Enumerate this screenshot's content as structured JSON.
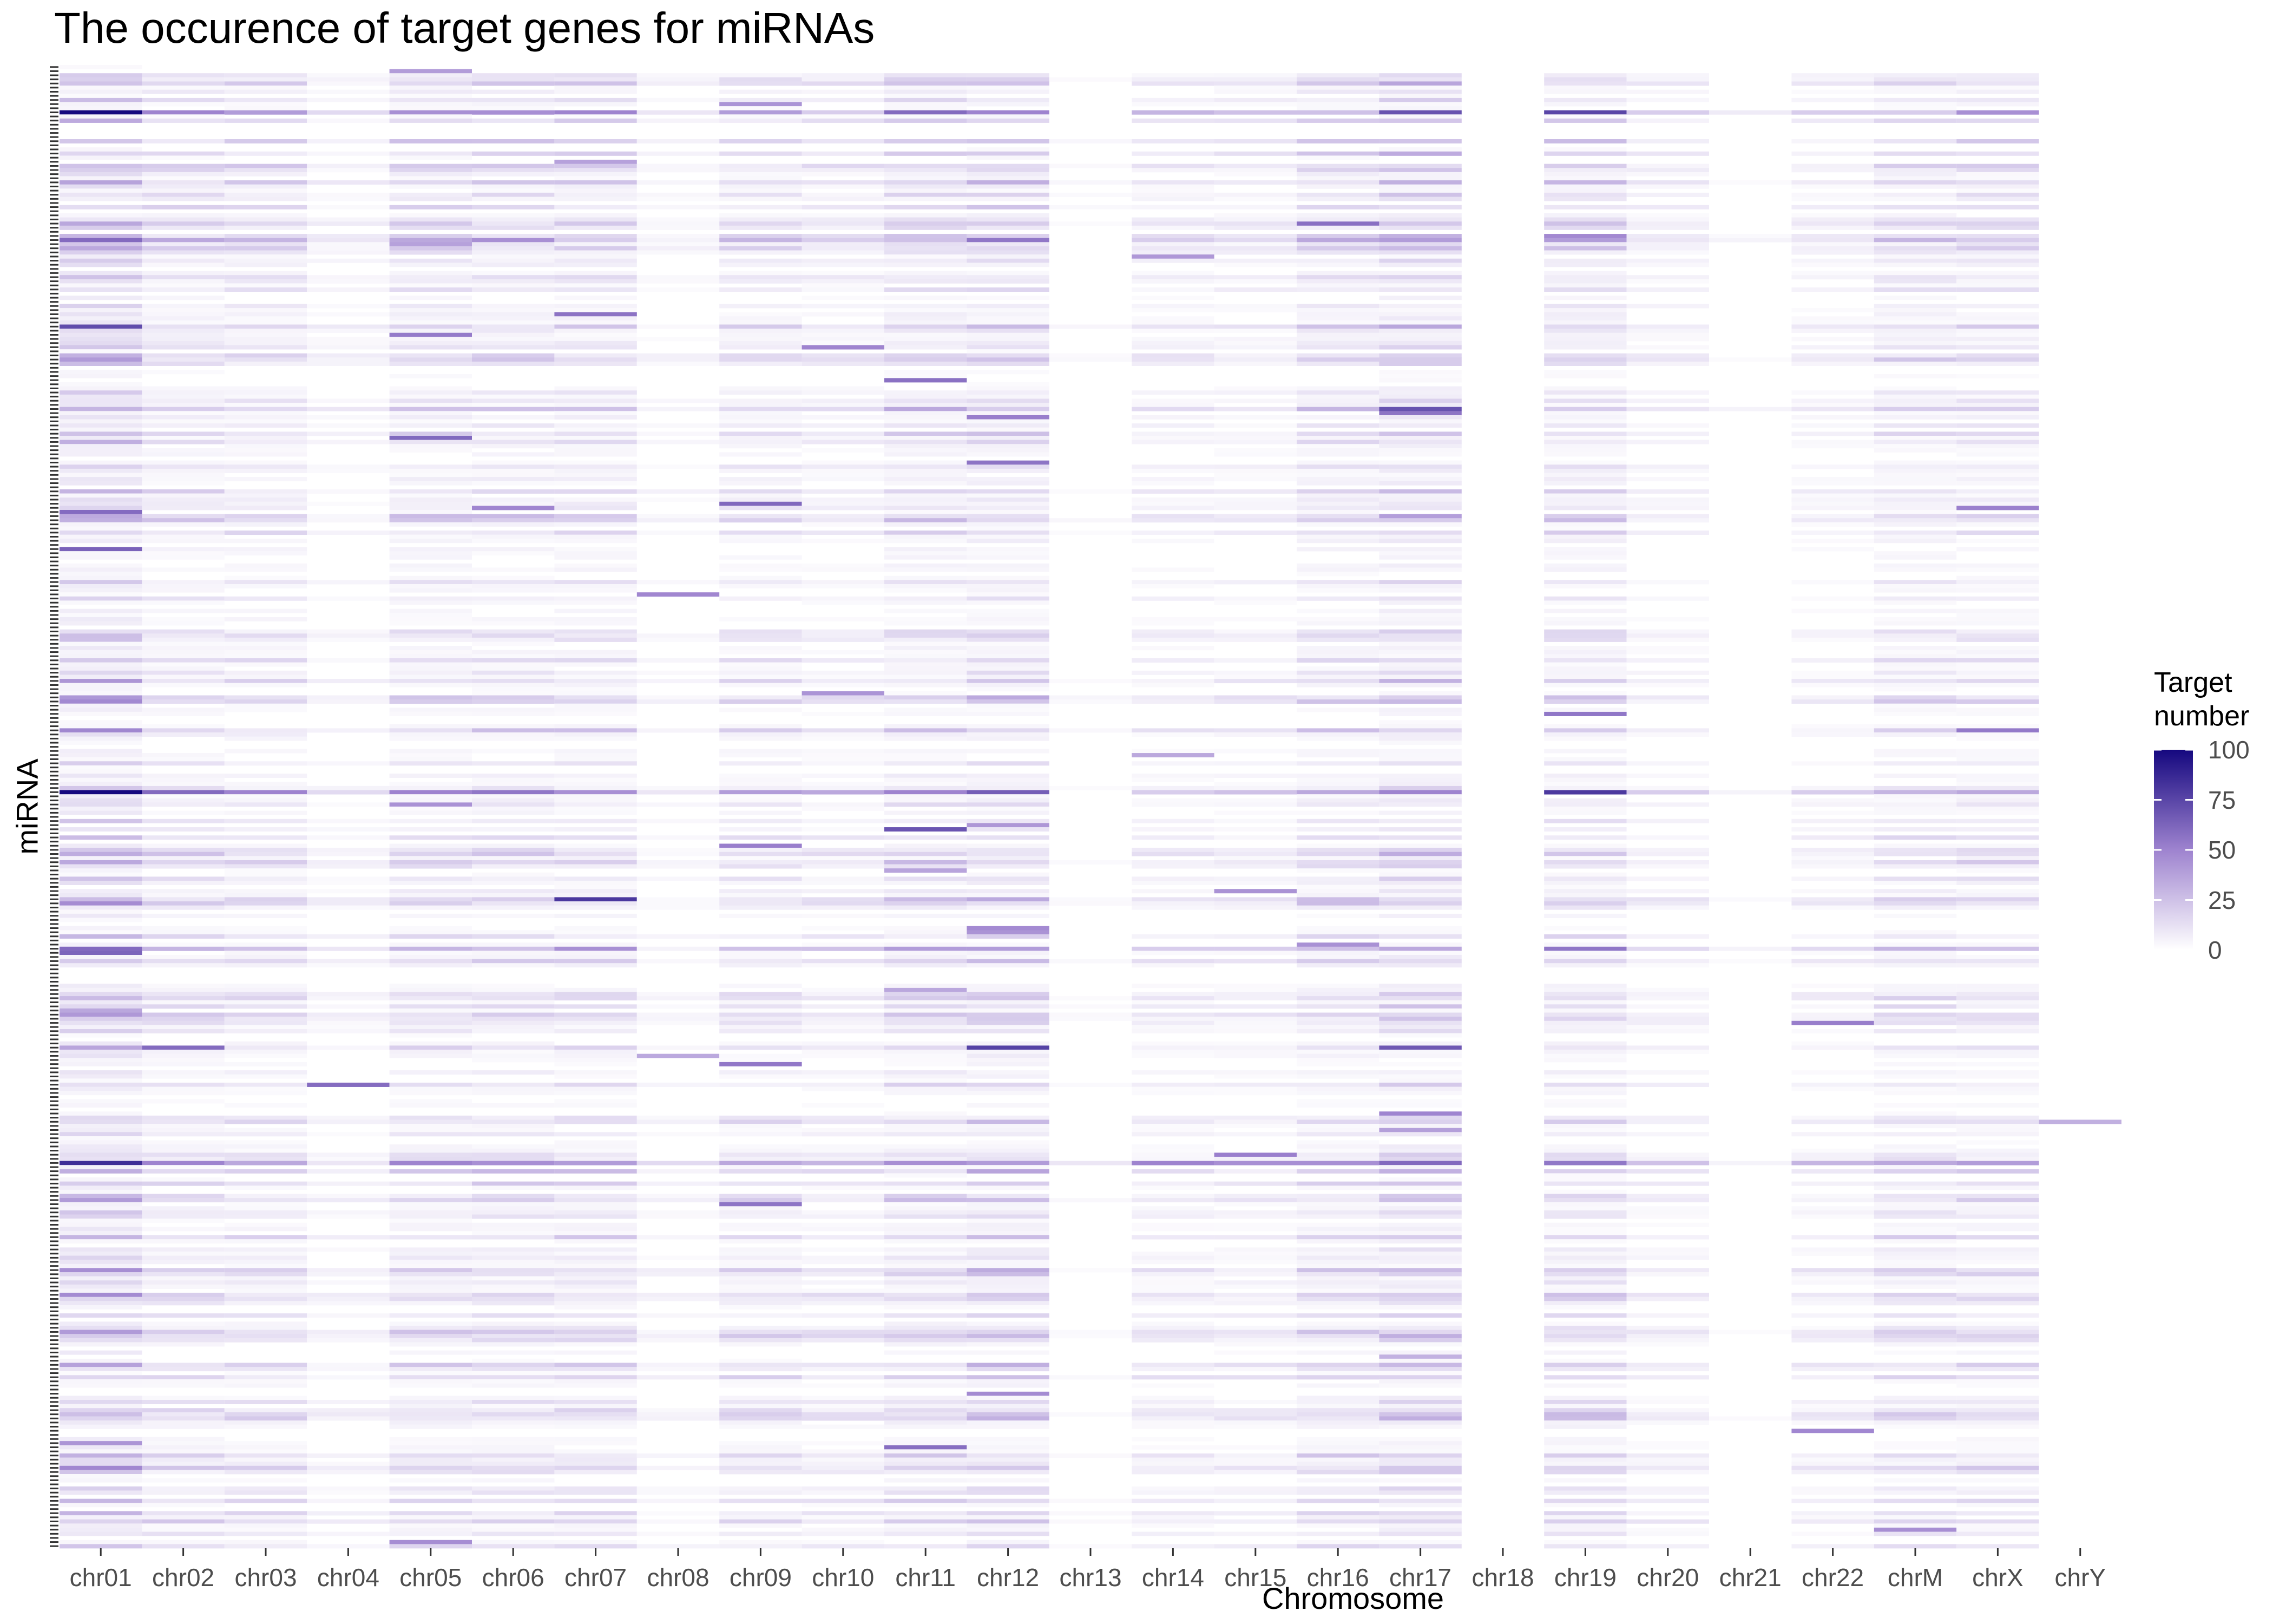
{
  "chart_data": {
    "type": "heatmap",
    "title": "The occurence of target genes for miRNAs",
    "xlabel": "Chromosome",
    "ylabel": "miRNA",
    "x": [
      "chr01",
      "chr02",
      "chr03",
      "chr04",
      "chr05",
      "chr06",
      "chr07",
      "chr08",
      "chr09",
      "chr10",
      "chr11",
      "chr12",
      "chr13",
      "chr14",
      "chr15",
      "chr16",
      "chr17",
      "chr18",
      "chr19",
      "chr20",
      "chr21",
      "chr22",
      "chrM",
      "chrX",
      "chrY"
    ],
    "legend": {
      "title_lines": [
        "Target",
        "number"
      ],
      "ticks": [
        100,
        75,
        50,
        25,
        0
      ],
      "range": [
        0,
        100
      ],
      "low_color": "#ffffff",
      "mid_color": "#9e83cf",
      "high_color": "#15087f",
      "placement": "right"
    },
    "highlight_rows": [
      {
        "row": 11,
        "values": [
          100,
          50,
          40,
          15,
          45,
          45,
          50,
          10,
          40,
          20,
          60,
          50,
          0,
          30,
          25,
          25,
          70,
          0,
          75,
          20,
          8,
          20,
          20,
          45,
          0
        ]
      },
      {
        "row": 42,
        "values": [
          60,
          35,
          30,
          10,
          35,
          45,
          20,
          5,
          30,
          20,
          25,
          55,
          0,
          20,
          15,
          35,
          40,
          0,
          40,
          10,
          5,
          10,
          30,
          20,
          0
        ]
      },
      {
        "row": 83,
        "values": [
          30,
          20,
          15,
          10,
          25,
          25,
          25,
          5,
          15,
          15,
          35,
          20,
          0,
          15,
          10,
          30,
          70,
          0,
          20,
          10,
          5,
          10,
          20,
          20,
          0
        ]
      },
      {
        "row": 176,
        "values": [
          100,
          60,
          50,
          15,
          50,
          55,
          45,
          10,
          40,
          35,
          50,
          65,
          0,
          20,
          25,
          35,
          50,
          0,
          80,
          20,
          5,
          20,
          30,
          35,
          0
        ]
      },
      {
        "row": 266,
        "values": [
          85,
          50,
          35,
          10,
          50,
          45,
          40,
          15,
          35,
          30,
          45,
          40,
          10,
          50,
          45,
          45,
          60,
          0,
          55,
          25,
          5,
          30,
          35,
          40,
          0
        ]
      },
      {
        "row": 214,
        "values": [
          60,
          30,
          25,
          10,
          30,
          25,
          45,
          5,
          25,
          25,
          40,
          40,
          0,
          20,
          20,
          25,
          35,
          0,
          55,
          15,
          5,
          15,
          30,
          25,
          0
        ]
      }
    ],
    "notes_rows": 360
  }
}
